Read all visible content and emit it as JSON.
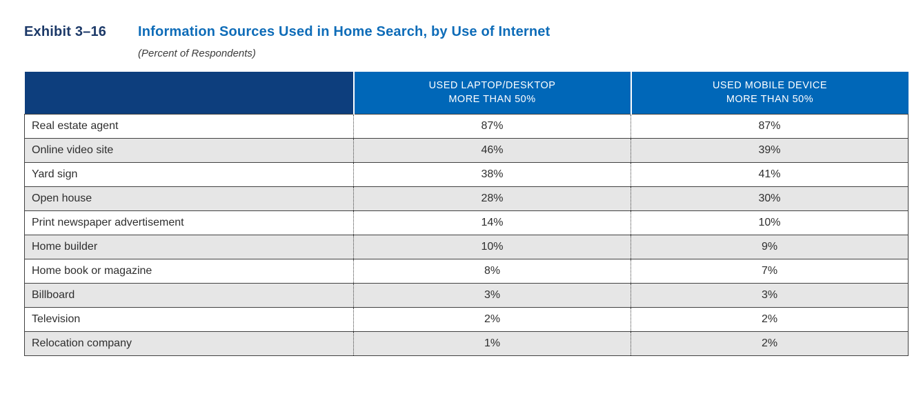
{
  "title": {
    "exhibit_label": "Exhibit 3–16",
    "text": "Information Sources Used in Home Search, by Use of Internet",
    "subtitle": "(Percent of Respondents)"
  },
  "colors": {
    "title_navy": "#1c3968",
    "title_blue": "#0e6cb8",
    "header_navy": "#0d3e7d",
    "header_blue": "#0067b8",
    "header_text": "#ffffff",
    "row_alt_gray": "#e6e6e6",
    "row_border": "#404040",
    "body_text": "#2e2e2e"
  },
  "table": {
    "headers": {
      "source": "",
      "laptop": {
        "line1": "USED LAPTOP/DESKTOP",
        "line2": "MORE THAN 50%"
      },
      "mobile": {
        "line1": "USED MOBILE DEVICE",
        "line2": "MORE THAN 50%"
      }
    },
    "rows": [
      {
        "source": "Real estate agent",
        "laptop": "87%",
        "mobile": "87%"
      },
      {
        "source": "Online video site",
        "laptop": "46%",
        "mobile": "39%"
      },
      {
        "source": "Yard sign",
        "laptop": "38%",
        "mobile": "41%"
      },
      {
        "source": "Open house",
        "laptop": "28%",
        "mobile": "30%"
      },
      {
        "source": "Print newspaper advertisement",
        "laptop": "14%",
        "mobile": "10%"
      },
      {
        "source": "Home builder",
        "laptop": "10%",
        "mobile": "9%"
      },
      {
        "source": "Home book or magazine",
        "laptop": "8%",
        "mobile": "7%"
      },
      {
        "source": "Billboard",
        "laptop": "3%",
        "mobile": "3%"
      },
      {
        "source": "Television",
        "laptop": "2%",
        "mobile": "2%"
      },
      {
        "source": "Relocation company",
        "laptop": "1%",
        "mobile": "2%"
      }
    ]
  },
  "chart_data": {
    "type": "table",
    "title": "Information Sources Used in Home Search, by Use of Internet",
    "subtitle": "(Percent of Respondents)",
    "categories": [
      "Real estate agent",
      "Online video site",
      "Yard sign",
      "Open house",
      "Print newspaper advertisement",
      "Home builder",
      "Home book or magazine",
      "Billboard",
      "Television",
      "Relocation company"
    ],
    "series": [
      {
        "name": "USED LAPTOP/DESKTOP MORE THAN 50%",
        "values": [
          87,
          46,
          38,
          28,
          14,
          10,
          8,
          3,
          2,
          1
        ]
      },
      {
        "name": "USED MOBILE DEVICE MORE THAN 50%",
        "values": [
          87,
          39,
          41,
          30,
          10,
          9,
          7,
          3,
          2,
          2
        ]
      }
    ],
    "unit": "%"
  }
}
